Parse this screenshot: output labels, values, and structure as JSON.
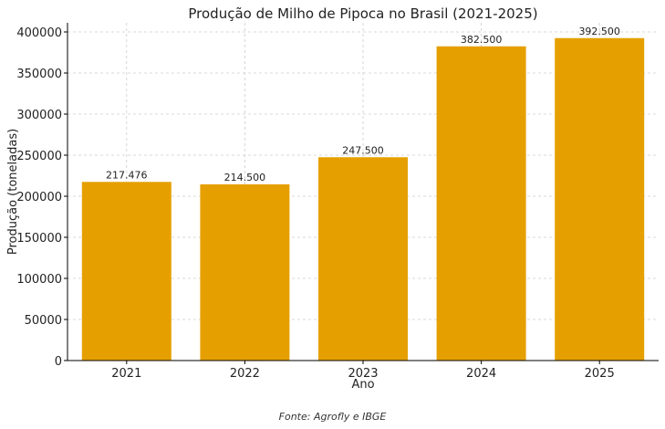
{
  "chart_data": {
    "type": "bar",
    "title": "Produção de Milho de Pipoca no Brasil (2021-2025)",
    "xlabel": "Ano",
    "ylabel": "Produção (toneladas)",
    "categories": [
      "2021",
      "2022",
      "2023",
      "2024",
      "2025"
    ],
    "values": [
      217476,
      214500,
      247500,
      382500,
      392500
    ],
    "data_labels": [
      "217.476",
      "214.500",
      "247.500",
      "382.500",
      "392.500"
    ],
    "ylim": [
      0,
      410000
    ],
    "yticks": [
      0,
      50000,
      100000,
      150000,
      200000,
      250000,
      300000,
      350000,
      400000
    ],
    "grid": true,
    "bar_color": "#E5A000",
    "source": "Fonte: Agrofly e IBGE"
  }
}
